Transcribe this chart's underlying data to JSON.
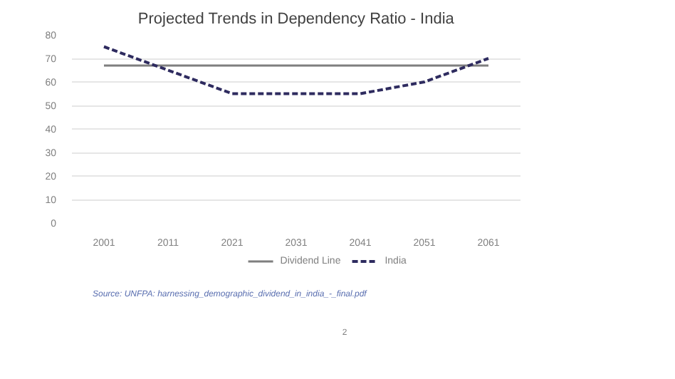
{
  "chart_data": {
    "type": "line",
    "title": "Projected Trends in Dependency Ratio - India",
    "categories": [
      "2001",
      "2011",
      "2021",
      "2031",
      "2041",
      "2051",
      "2061"
    ],
    "series": [
      {
        "name": "Dividend Line",
        "color": "#7f7f7f",
        "line_style": "solid",
        "values": [
          67,
          67,
          67,
          67,
          67,
          67,
          67
        ]
      },
      {
        "name": "India",
        "color": "#2e2b5f",
        "line_style": "dashed",
        "values": [
          75,
          65,
          55,
          55,
          55,
          60,
          70
        ]
      }
    ],
    "ylim": [
      0,
      80
    ],
    "yticks": [
      0,
      10,
      20,
      30,
      40,
      50,
      60,
      70,
      80
    ],
    "grid": "y",
    "legend": "bottom",
    "annotations": [
      "Source: UNFPA: harnessing_demographic_dividend_in_india_-_final.pdf",
      "2"
    ]
  }
}
